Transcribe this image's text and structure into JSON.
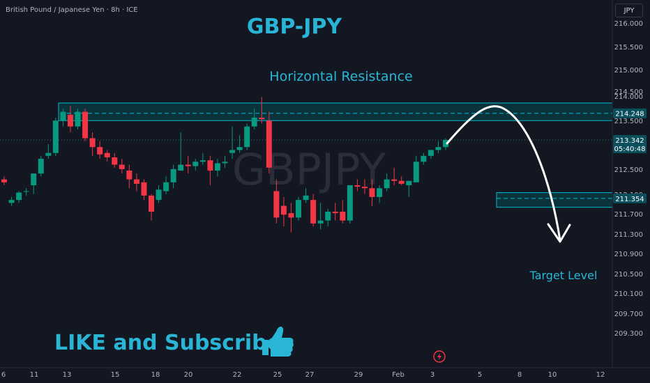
{
  "header": {
    "symbol_info": "British Pound / Japanese Yen · 8h · ICE"
  },
  "currency_button": "JPY",
  "watermark": "GBPJPY",
  "annotations": {
    "title": "GBP-JPY",
    "resistance_label": "Horizontal Resistance",
    "target_label": "Target Level",
    "cta": "LIKE and Subscribe"
  },
  "colors": {
    "background": "#131722",
    "bull": "#089981",
    "bear": "#f23645",
    "zone": "#00bcd4",
    "zone_fill": "#0a3d45",
    "annotation_text": "#29b6d6"
  },
  "price_tags": [
    {
      "value": "214.248",
      "bg": "#0b4f5c"
    },
    {
      "value": "213.342",
      "sub": "05:40:48",
      "bg": "#0b4f5c"
    },
    {
      "value": "211.354",
      "bg": "#0b4f5c"
    }
  ],
  "chart_data": {
    "type": "candlestick",
    "y_axis": {
      "labels": [
        "216.000",
        "215.500",
        "215.000",
        "214.500",
        "214.000",
        "213.500",
        "213.000",
        "212.500",
        "212.100",
        "211.700",
        "211.300",
        "210.900",
        "210.500",
        "210.100",
        "209.700",
        "209.300"
      ]
    },
    "x_axis": {
      "labels": [
        "6",
        "11",
        "13",
        "15",
        "18",
        "20",
        "22",
        "25",
        "27",
        "29",
        "Feb",
        "3",
        "5",
        "8",
        "10",
        "12"
      ]
    },
    "resistance_zone": {
      "low": 214.0,
      "high": 214.6,
      "mid_line": 214.248
    },
    "target_zone": {
      "low": 211.05,
      "high": 211.55,
      "mid_line": 211.354
    },
    "current_price": 213.342,
    "candles": [
      {
        "o": 212.0,
        "h": 212.1,
        "l": 211.8,
        "c": 211.9
      },
      {
        "o": 211.2,
        "h": 211.4,
        "l": 211.1,
        "c": 211.3
      },
      {
        "o": 211.3,
        "h": 211.6,
        "l": 211.2,
        "c": 211.55
      },
      {
        "o": 211.6,
        "h": 211.7,
        "l": 211.45,
        "c": 211.6
      },
      {
        "o": 211.8,
        "h": 212.2,
        "l": 211.5,
        "c": 212.2
      },
      {
        "o": 212.2,
        "h": 212.8,
        "l": 212.1,
        "c": 212.7
      },
      {
        "o": 212.8,
        "h": 213.2,
        "l": 212.7,
        "c": 212.9
      },
      {
        "o": 212.9,
        "h": 214.1,
        "l": 212.8,
        "c": 214.0
      },
      {
        "o": 214.0,
        "h": 214.4,
        "l": 213.8,
        "c": 214.3
      },
      {
        "o": 214.2,
        "h": 214.5,
        "l": 213.6,
        "c": 213.8
      },
      {
        "o": 213.8,
        "h": 214.4,
        "l": 213.7,
        "c": 214.3
      },
      {
        "o": 214.3,
        "h": 214.4,
        "l": 213.3,
        "c": 213.4
      },
      {
        "o": 213.4,
        "h": 213.6,
        "l": 212.8,
        "c": 213.1
      },
      {
        "o": 213.1,
        "h": 213.3,
        "l": 212.7,
        "c": 212.85
      },
      {
        "o": 212.9,
        "h": 213.0,
        "l": 212.6,
        "c": 212.75
      },
      {
        "o": 212.75,
        "h": 212.9,
        "l": 212.4,
        "c": 212.5
      },
      {
        "o": 212.5,
        "h": 212.7,
        "l": 212.2,
        "c": 212.35
      },
      {
        "o": 212.3,
        "h": 212.5,
        "l": 211.7,
        "c": 212.0
      },
      {
        "o": 212.0,
        "h": 212.2,
        "l": 211.6,
        "c": 211.85
      },
      {
        "o": 211.9,
        "h": 212.0,
        "l": 211.3,
        "c": 211.45
      },
      {
        "o": 211.45,
        "h": 211.5,
        "l": 210.6,
        "c": 210.9
      },
      {
        "o": 211.3,
        "h": 211.8,
        "l": 211.2,
        "c": 211.65
      },
      {
        "o": 211.6,
        "h": 212.1,
        "l": 211.5,
        "c": 211.9
      },
      {
        "o": 211.9,
        "h": 212.5,
        "l": 211.7,
        "c": 212.35
      },
      {
        "o": 212.3,
        "h": 213.6,
        "l": 212.3,
        "c": 212.5
      },
      {
        "o": 212.5,
        "h": 212.8,
        "l": 212.2,
        "c": 212.45
      },
      {
        "o": 212.45,
        "h": 212.7,
        "l": 212.3,
        "c": 212.6
      },
      {
        "o": 212.6,
        "h": 212.9,
        "l": 212.5,
        "c": 212.65
      },
      {
        "o": 212.65,
        "h": 212.8,
        "l": 211.8,
        "c": 212.3
      },
      {
        "o": 212.3,
        "h": 212.7,
        "l": 212.1,
        "c": 212.55
      },
      {
        "o": 212.55,
        "h": 212.8,
        "l": 212.4,
        "c": 212.6
      },
      {
        "o": 212.9,
        "h": 213.8,
        "l": 212.7,
        "c": 213.0
      },
      {
        "o": 213.0,
        "h": 213.5,
        "l": 212.9,
        "c": 213.1
      },
      {
        "o": 213.1,
        "h": 213.9,
        "l": 213.0,
        "c": 213.8
      },
      {
        "o": 213.8,
        "h": 214.4,
        "l": 213.7,
        "c": 214.1
      },
      {
        "o": 214.1,
        "h": 214.8,
        "l": 213.9,
        "c": 214.05
      },
      {
        "o": 214.0,
        "h": 214.3,
        "l": 212.2,
        "c": 212.4
      },
      {
        "o": 211.6,
        "h": 212.0,
        "l": 210.5,
        "c": 210.7
      },
      {
        "o": 211.1,
        "h": 211.4,
        "l": 210.4,
        "c": 210.8
      },
      {
        "o": 210.85,
        "h": 211.2,
        "l": 210.2,
        "c": 210.7
      },
      {
        "o": 210.7,
        "h": 211.4,
        "l": 210.6,
        "c": 211.3
      },
      {
        "o": 211.3,
        "h": 211.7,
        "l": 211.2,
        "c": 211.45
      },
      {
        "o": 211.3,
        "h": 211.5,
        "l": 210.4,
        "c": 210.5
      },
      {
        "o": 210.5,
        "h": 211.2,
        "l": 210.3,
        "c": 210.6
      },
      {
        "o": 210.6,
        "h": 211.0,
        "l": 210.4,
        "c": 210.9
      },
      {
        "o": 210.9,
        "h": 211.2,
        "l": 210.6,
        "c": 210.85
      },
      {
        "o": 210.9,
        "h": 211.3,
        "l": 210.5,
        "c": 210.6
      },
      {
        "o": 210.6,
        "h": 211.8,
        "l": 210.5,
        "c": 211.8
      },
      {
        "o": 211.8,
        "h": 212.0,
        "l": 211.6,
        "c": 211.75
      },
      {
        "o": 211.75,
        "h": 212.0,
        "l": 211.5,
        "c": 211.7
      },
      {
        "o": 211.7,
        "h": 212.0,
        "l": 211.1,
        "c": 211.4
      },
      {
        "o": 211.4,
        "h": 211.8,
        "l": 211.2,
        "c": 211.7
      },
      {
        "o": 211.7,
        "h": 212.2,
        "l": 211.6,
        "c": 212.0
      },
      {
        "o": 212.0,
        "h": 212.4,
        "l": 211.8,
        "c": 211.95
      },
      {
        "o": 211.95,
        "h": 212.1,
        "l": 211.8,
        "c": 211.85
      },
      {
        "o": 211.8,
        "h": 211.95,
        "l": 211.4,
        "c": 211.95
      },
      {
        "o": 211.9,
        "h": 212.8,
        "l": 211.9,
        "c": 212.6
      },
      {
        "o": 212.6,
        "h": 212.9,
        "l": 212.5,
        "c": 212.8
      },
      {
        "o": 212.8,
        "h": 213.0,
        "l": 212.7,
        "c": 213.0
      },
      {
        "o": 213.0,
        "h": 213.3,
        "l": 212.9,
        "c": 213.1
      },
      {
        "o": 213.1,
        "h": 213.4,
        "l": 213.0,
        "c": 213.342
      }
    ]
  }
}
